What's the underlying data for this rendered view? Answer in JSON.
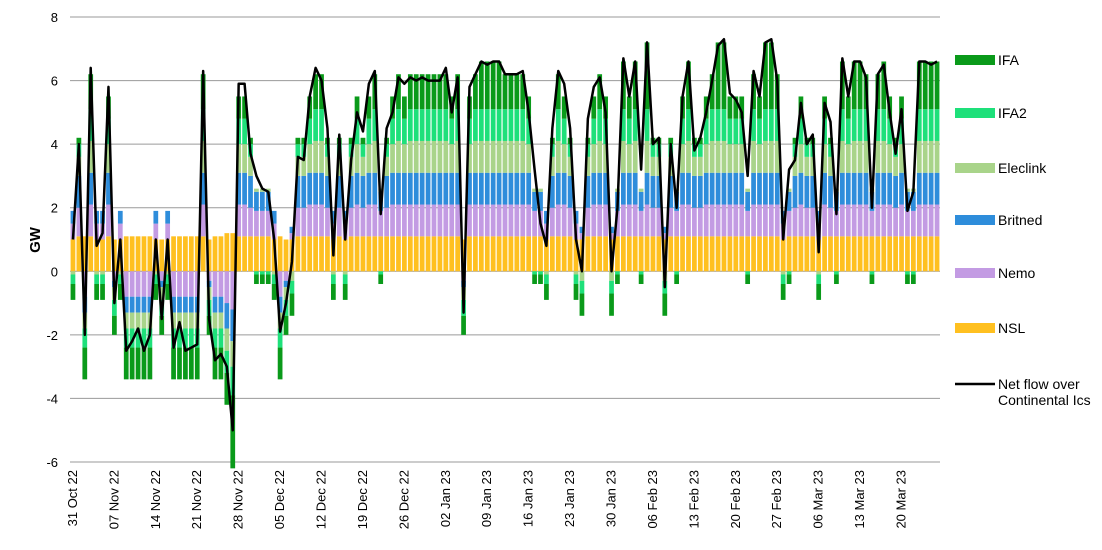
{
  "chart_data": {
    "type": "bar",
    "stacked": true,
    "y_label": "GW",
    "ylim": [
      -6,
      8
    ],
    "yticks": [
      -6,
      -4,
      -2,
      0,
      2,
      4,
      6,
      8
    ],
    "grid": true,
    "legend": "right",
    "categories": [
      "31 Oct 22",
      null,
      null,
      null,
      null,
      null,
      null,
      "07 Nov 22",
      null,
      null,
      null,
      null,
      null,
      null,
      "14 Nov 22",
      null,
      null,
      null,
      null,
      null,
      null,
      "21 Nov 22",
      null,
      null,
      null,
      null,
      null,
      null,
      "28 Nov 22",
      null,
      null,
      null,
      null,
      null,
      null,
      "05 Dec 22",
      null,
      null,
      null,
      null,
      null,
      null,
      "12 Dec 22",
      null,
      null,
      null,
      null,
      null,
      null,
      "19 Dec 22",
      null,
      null,
      null,
      null,
      null,
      null,
      "26 Dec 22",
      null,
      null,
      null,
      null,
      null,
      null,
      "02 Jan 23",
      null,
      null,
      null,
      null,
      null,
      null,
      "09 Jan 23",
      null,
      null,
      null,
      null,
      null,
      null,
      "16 Jan 23",
      null,
      null,
      null,
      null,
      null,
      null,
      "23 Jan 23",
      null,
      null,
      null,
      null,
      null,
      null,
      "30 Jan 23",
      null,
      null,
      null,
      null,
      null,
      null,
      "06 Feb 23",
      null,
      null,
      null,
      null,
      null,
      null,
      "13 Feb 23",
      null,
      null,
      null,
      null,
      null,
      null,
      "20 Feb 23",
      null,
      null,
      null,
      null,
      null,
      null,
      "27 Feb 23",
      null,
      null,
      null,
      null,
      null,
      null,
      "06 Mar 23",
      null,
      null,
      null,
      null,
      null,
      null,
      "13 Mar 23",
      null,
      null,
      null,
      null,
      null,
      null,
      "20 Mar 23",
      null,
      null,
      null,
      null,
      null,
      null
    ],
    "series": [
      {
        "name": "NSL",
        "color": "#ffc020",
        "values": [
          1.0,
          1.1,
          1.1,
          1.1,
          1.0,
          1.0,
          1.1,
          1.0,
          1.0,
          1.1,
          1.1,
          1.1,
          1.1,
          1.1,
          1.0,
          1.0,
          1.0,
          1.1,
          1.1,
          1.1,
          1.1,
          1.1,
          1.1,
          1.0,
          1.1,
          1.1,
          1.2,
          1.2,
          1.1,
          1.1,
          1.1,
          1.1,
          1.1,
          1.1,
          1.0,
          1.1,
          1.0,
          1.0,
          1.1,
          1.1,
          1.1,
          1.1,
          1.1,
          1.1,
          1.0,
          1.1,
          1.0,
          1.1,
          1.1,
          1.1,
          1.1,
          1.1,
          1.1,
          1.1,
          1.1,
          1.1,
          1.1,
          1.1,
          1.1,
          1.1,
          1.1,
          1.1,
          1.1,
          1.1,
          1.1,
          1.1,
          1.0,
          1.1,
          1.1,
          1.1,
          1.1,
          1.1,
          1.1,
          1.1,
          1.1,
          1.1,
          1.1,
          1.1,
          1.1,
          1.1,
          1.0,
          1.1,
          1.1,
          1.1,
          1.1,
          1.0,
          1.0,
          1.1,
          1.1,
          1.1,
          1.1,
          1.0,
          1.1,
          1.1,
          1.1,
          1.1,
          1.1,
          1.1,
          1.1,
          1.1,
          1.0,
          1.1,
          1.1,
          1.1,
          1.1,
          1.1,
          1.1,
          1.1,
          1.1,
          1.1,
          1.1,
          1.1,
          1.1,
          1.1,
          1.1,
          1.1,
          1.1,
          1.1,
          1.1,
          1.1,
          1.0,
          1.1,
          1.1,
          1.1,
          1.1,
          1.1,
          1.0,
          1.1,
          1.1,
          1.1,
          1.1,
          1.1,
          1.1,
          1.1,
          1.1,
          1.1,
          1.1,
          1.1,
          1.1,
          1.1,
          1.1,
          1.1,
          1.1,
          1.1,
          1.1,
          1.1,
          1.1
        ]
      },
      {
        "name": "Nemo",
        "color": "#c39be3",
        "values": [
          0.5,
          0.9,
          -0.8,
          1.0,
          0.5,
          0.5,
          1.0,
          -0.3,
          0.5,
          -0.8,
          -0.8,
          -0.8,
          -0.8,
          -0.8,
          0.5,
          -0.3,
          0.5,
          -0.8,
          -0.8,
          -0.8,
          -0.8,
          -0.8,
          1.0,
          -0.3,
          -0.8,
          -0.8,
          -1.0,
          -1.2,
          1.0,
          1.0,
          0.9,
          0.8,
          0.8,
          0.8,
          0.5,
          -0.8,
          -0.3,
          0.2,
          0.9,
          0.9,
          1.0,
          1.0,
          1.0,
          0.9,
          0.5,
          0.9,
          0.5,
          0.9,
          1.0,
          0.9,
          1.0,
          1.0,
          0.8,
          0.9,
          1.0,
          1.0,
          1.0,
          1.0,
          1.0,
          1.0,
          1.0,
          1.0,
          1.0,
          1.0,
          1.0,
          1.0,
          -0.3,
          1.0,
          1.0,
          1.0,
          1.0,
          1.0,
          1.0,
          1.0,
          1.0,
          1.0,
          1.0,
          1.0,
          0.8,
          0.8,
          0.5,
          0.9,
          1.0,
          1.0,
          0.9,
          0.5,
          0.2,
          0.9,
          1.0,
          1.0,
          1.0,
          0.2,
          0.8,
          1.0,
          1.0,
          1.0,
          0.8,
          1.0,
          0.9,
          0.9,
          0.2,
          0.9,
          0.8,
          1.0,
          1.0,
          0.9,
          0.9,
          1.0,
          1.0,
          1.0,
          1.0,
          1.0,
          1.0,
          1.0,
          0.8,
          1.0,
          1.0,
          1.0,
          1.0,
          1.0,
          0.5,
          0.8,
          0.9,
          1.0,
          0.9,
          0.9,
          0.5,
          1.0,
          0.9,
          0.8,
          1.0,
          1.0,
          1.0,
          1.0,
          1.0,
          0.8,
          1.0,
          1.0,
          1.0,
          0.9,
          1.0,
          0.8,
          0.8,
          1.0,
          1.0,
          1.0,
          1.0
        ]
      },
      {
        "name": "Britned",
        "color": "#2e8ddb",
        "values": [
          0.4,
          1.0,
          -0.5,
          1.0,
          0.4,
          0.4,
          1.0,
          -0.2,
          0.4,
          -0.5,
          -0.5,
          -0.5,
          -0.5,
          -0.5,
          0.4,
          -0.2,
          0.4,
          -0.5,
          -0.5,
          -0.5,
          -0.5,
          -0.5,
          1.0,
          -0.2,
          -0.5,
          -0.5,
          -0.8,
          -1.0,
          1.0,
          1.0,
          1.0,
          0.6,
          0.6,
          0.6,
          0.4,
          -0.5,
          -0.2,
          0.2,
          1.0,
          1.0,
          1.0,
          1.0,
          1.0,
          1.0,
          0.4,
          1.0,
          0.4,
          1.0,
          1.0,
          1.0,
          1.0,
          1.0,
          0.6,
          1.0,
          1.0,
          1.0,
          1.0,
          1.0,
          1.0,
          1.0,
          1.0,
          1.0,
          1.0,
          1.0,
          1.0,
          1.0,
          -0.2,
          1.0,
          1.0,
          1.0,
          1.0,
          1.0,
          1.0,
          1.0,
          1.0,
          1.0,
          1.0,
          1.0,
          0.6,
          0.6,
          0.4,
          1.0,
          1.0,
          1.0,
          1.0,
          0.4,
          0.2,
          1.0,
          1.0,
          1.0,
          1.0,
          0.2,
          0.6,
          1.0,
          1.0,
          1.0,
          0.6,
          1.0,
          1.0,
          1.0,
          0.2,
          1.0,
          0.6,
          1.0,
          1.0,
          1.0,
          1.0,
          1.0,
          1.0,
          1.0,
          1.0,
          1.0,
          1.0,
          1.0,
          0.6,
          1.0,
          1.0,
          1.0,
          1.0,
          1.0,
          0.4,
          0.6,
          1.0,
          1.0,
          1.0,
          1.0,
          0.4,
          1.0,
          1.0,
          0.6,
          1.0,
          1.0,
          1.0,
          1.0,
          1.0,
          0.6,
          1.0,
          1.0,
          1.0,
          1.0,
          1.0,
          0.6,
          0.6,
          1.0,
          1.0,
          1.0,
          1.0
        ]
      },
      {
        "name": "Eleclink",
        "color": "#a9d48a",
        "values": [
          -0.1,
          0.6,
          -0.5,
          1.0,
          -0.1,
          -0.1,
          0.9,
          -0.4,
          -0.1,
          -0.5,
          -0.5,
          -0.5,
          -0.5,
          -0.5,
          -0.1,
          -0.4,
          -0.1,
          -0.5,
          -0.5,
          -0.5,
          -0.5,
          -0.5,
          1.0,
          -0.4,
          -0.5,
          -0.5,
          -0.7,
          -0.8,
          0.9,
          0.9,
          0.6,
          0.1,
          0.1,
          0.1,
          -0.1,
          -0.5,
          -0.4,
          -0.3,
          0.6,
          0.6,
          0.9,
          1.0,
          1.0,
          0.6,
          -0.1,
          0.6,
          -0.1,
          0.6,
          0.9,
          0.6,
          0.9,
          1.0,
          0.1,
          0.6,
          0.9,
          1.0,
          0.9,
          1.0,
          1.0,
          1.0,
          1.0,
          1.0,
          1.0,
          1.0,
          0.9,
          1.0,
          -0.4,
          0.9,
          1.0,
          1.0,
          1.0,
          1.0,
          1.0,
          1.0,
          1.0,
          1.0,
          1.0,
          0.9,
          0.1,
          0.1,
          -0.1,
          0.6,
          1.0,
          0.9,
          0.6,
          -0.1,
          -0.3,
          0.6,
          0.9,
          1.0,
          0.9,
          -0.3,
          0.1,
          1.0,
          0.9,
          1.0,
          0.1,
          1.0,
          0.6,
          0.6,
          -0.3,
          0.6,
          0.1,
          0.9,
          1.0,
          0.6,
          0.6,
          0.9,
          1.0,
          1.0,
          1.0,
          0.9,
          0.9,
          0.9,
          0.1,
          1.0,
          0.9,
          1.0,
          1.0,
          1.0,
          -0.1,
          0.1,
          0.6,
          0.9,
          0.6,
          0.6,
          -0.1,
          0.9,
          0.6,
          0.1,
          1.0,
          0.9,
          1.0,
          1.0,
          1.0,
          0.1,
          1.0,
          1.0,
          0.9,
          0.6,
          0.9,
          0.1,
          0.1,
          1.0,
          1.0,
          1.0,
          1.0
        ]
      },
      {
        "name": "IFA2",
        "color": "#1ee07a",
        "values": [
          -0.3,
          0.4,
          -0.6,
          1.0,
          -0.3,
          -0.3,
          0.8,
          -0.5,
          -0.3,
          -0.6,
          -0.6,
          -0.6,
          -0.6,
          -0.6,
          -0.3,
          -0.5,
          -0.3,
          -0.6,
          -0.6,
          -0.6,
          -0.6,
          -0.6,
          1.0,
          -0.5,
          -0.6,
          -0.6,
          -0.7,
          -0.9,
          0.8,
          0.8,
          0.4,
          -0.1,
          -0.1,
          -0.1,
          -0.3,
          -0.6,
          -0.5,
          -0.4,
          0.4,
          0.4,
          0.8,
          1.0,
          1.0,
          0.4,
          -0.3,
          0.4,
          -0.3,
          0.4,
          0.8,
          0.4,
          0.8,
          1.0,
          -0.1,
          0.4,
          0.8,
          1.0,
          0.8,
          1.0,
          1.0,
          1.0,
          1.0,
          1.0,
          1.0,
          1.0,
          0.8,
          1.0,
          -0.5,
          0.8,
          1.0,
          1.0,
          1.0,
          1.0,
          1.0,
          1.0,
          1.0,
          1.0,
          1.0,
          0.8,
          -0.1,
          -0.1,
          -0.3,
          0.4,
          1.0,
          0.8,
          0.4,
          -0.3,
          -0.4,
          0.4,
          0.8,
          1.0,
          0.8,
          -0.4,
          -0.1,
          1.0,
          0.8,
          1.0,
          -0.1,
          1.0,
          0.4,
          0.4,
          -0.4,
          0.4,
          -0.1,
          0.8,
          1.0,
          0.4,
          0.4,
          0.8,
          1.0,
          1.0,
          1.0,
          0.8,
          0.8,
          0.8,
          -0.1,
          1.0,
          0.8,
          1.0,
          1.0,
          1.0,
          -0.3,
          -0.1,
          0.4,
          0.8,
          0.4,
          0.4,
          -0.3,
          0.8,
          0.4,
          -0.1,
          1.0,
          0.8,
          1.0,
          1.0,
          1.0,
          -0.1,
          1.0,
          1.0,
          0.8,
          0.4,
          0.8,
          -0.1,
          -0.1,
          1.0,
          1.0,
          1.0,
          1.0
        ]
      },
      {
        "name": "IFA",
        "color": "#0a9a1a",
        "values": [
          -0.5,
          0.2,
          -1.0,
          1.1,
          -0.5,
          -0.5,
          0.7,
          -0.6,
          -0.5,
          -1.0,
          -1.0,
          -1.0,
          -1.0,
          -1.0,
          -0.5,
          -0.6,
          -0.5,
          -1.0,
          -1.0,
          -1.0,
          -1.0,
          -1.0,
          1.1,
          -0.6,
          -1.0,
          -1.0,
          -1.0,
          -2.3,
          0.7,
          0.7,
          0.2,
          -0.3,
          -0.3,
          -0.3,
          -0.5,
          -1.0,
          -0.6,
          -0.7,
          0.2,
          0.2,
          0.7,
          1.1,
          1.1,
          0.2,
          -0.5,
          0.2,
          -0.5,
          0.2,
          0.7,
          0.2,
          0.7,
          1.1,
          -0.3,
          0.2,
          0.7,
          1.1,
          0.7,
          1.1,
          1.1,
          1.1,
          1.1,
          1.1,
          1.1,
          1.1,
          0.7,
          1.1,
          -0.6,
          0.7,
          1.1,
          1.5,
          1.5,
          1.5,
          1.5,
          1.1,
          1.1,
          1.1,
          1.1,
          0.7,
          -0.3,
          -0.3,
          -0.5,
          0.2,
          1.1,
          0.7,
          0.2,
          -0.5,
          -0.7,
          0.2,
          0.7,
          1.1,
          0.7,
          -0.7,
          -0.3,
          1.5,
          0.7,
          1.5,
          -0.3,
          2.1,
          0.2,
          0.2,
          -0.7,
          0.2,
          -0.3,
          0.7,
          1.5,
          0.2,
          0.2,
          0.7,
          1.1,
          2.1,
          2.1,
          0.7,
          0.7,
          0.7,
          -0.3,
          1.1,
          0.7,
          2.1,
          2.1,
          1.1,
          -0.5,
          -0.3,
          0.2,
          0.7,
          0.2,
          0.2,
          -0.5,
          0.7,
          0.2,
          -0.3,
          1.5,
          0.7,
          1.5,
          1.5,
          1.1,
          -0.3,
          1.1,
          1.5,
          0.7,
          0.2,
          0.7,
          -0.3,
          -0.3,
          1.5,
          1.5,
          1.5,
          1.5
        ]
      },
      {
        "name": "Net flow over Continental Ics",
        "type": "line",
        "color": "#000000",
        "values": [
          1.0,
          4.0,
          -2.0,
          6.4,
          0.8,
          1.2,
          5.8,
          -1.0,
          1.0,
          -2.5,
          -2.2,
          -1.8,
          -2.5,
          -2.0,
          1.0,
          -1.5,
          1.0,
          -2.4,
          -1.6,
          -2.5,
          -2.4,
          -2.3,
          6.3,
          -1.5,
          -2.8,
          -2.6,
          -3.0,
          -5.0,
          5.9,
          5.9,
          3.7,
          3.0,
          2.6,
          2.5,
          1.0,
          -1.9,
          -1.0,
          0.3,
          3.6,
          3.5,
          5.5,
          6.4,
          6.0,
          4.5,
          0.5,
          4.3,
          1.0,
          3.5,
          5.0,
          4.4,
          5.9,
          6.3,
          1.8,
          4.5,
          5.0,
          6.1,
          5.9,
          6.1,
          6.0,
          6.1,
          6.0,
          6.0,
          6.0,
          6.4,
          5.0,
          6.1,
          -1.3,
          5.8,
          6.2,
          6.6,
          6.5,
          6.6,
          6.6,
          6.2,
          6.2,
          6.2,
          6.3,
          5.0,
          3.2,
          1.5,
          0.8,
          4.5,
          6.3,
          5.9,
          4.5,
          1.0,
          0.0,
          4.8,
          5.8,
          6.1,
          5.0,
          0.0,
          2.0,
          6.7,
          5.5,
          6.6,
          3.2,
          7.2,
          4.0,
          4.2,
          -0.5,
          4.0,
          2.0,
          5.5,
          6.6,
          3.8,
          4.2,
          5.0,
          6.0,
          7.1,
          7.3,
          5.6,
          5.4,
          5.0,
          3.0,
          6.3,
          5.5,
          7.2,
          7.3,
          6.0,
          1.0,
          3.2,
          3.5,
          5.3,
          4.0,
          4.3,
          0.6,
          5.3,
          4.7,
          1.8,
          6.7,
          5.5,
          6.6,
          6.6,
          6.1,
          2.0,
          6.2,
          6.5,
          5.0,
          3.7,
          5.1,
          1.9,
          2.5,
          6.6,
          6.6,
          6.5,
          6.6
        ]
      }
    ]
  }
}
